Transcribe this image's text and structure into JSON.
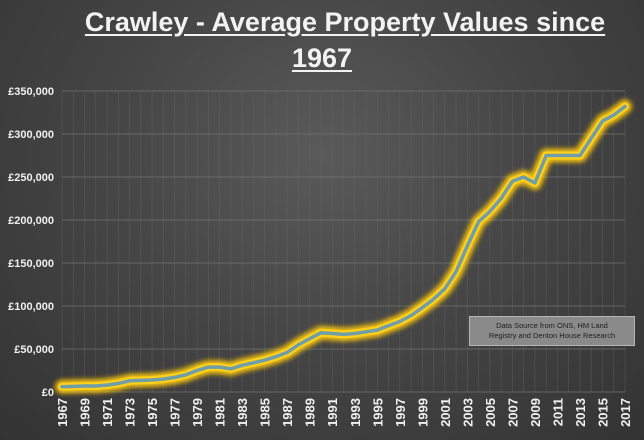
{
  "chart_data": {
    "type": "line",
    "title": "Crawley - Average Property Values since 1967",
    "title_lines": [
      "Crawley - Average Property Values since",
      "1967"
    ],
    "xlabel": "",
    "ylabel": "",
    "ylim": [
      0,
      350000
    ],
    "y_ticks": [
      "£0",
      "£50,000",
      "£100,000",
      "£150,000",
      "£200,000",
      "£250,000",
      "£300,000",
      "£350,000"
    ],
    "x_ticks": [
      "1967",
      "1969",
      "1971",
      "1973",
      "1975",
      "1977",
      "1979",
      "1981",
      "1983",
      "1985",
      "1987",
      "1989",
      "1991",
      "1993",
      "1995",
      "1997",
      "1999",
      "2001",
      "2003",
      "2005",
      "2007",
      "2009",
      "2011",
      "2013",
      "2015",
      "2017"
    ],
    "grid": true,
    "legend": null,
    "x": [
      1967,
      1968,
      1969,
      1970,
      1971,
      1972,
      1973,
      1974,
      1975,
      1976,
      1977,
      1978,
      1979,
      1980,
      1981,
      1982,
      1983,
      1984,
      1985,
      1986,
      1987,
      1988,
      1989,
      1990,
      1991,
      1992,
      1993,
      1994,
      1995,
      1996,
      1997,
      1998,
      1999,
      2000,
      2001,
      2002,
      2003,
      2004,
      2005,
      2006,
      2007,
      2008,
      2009,
      2010,
      2011,
      2012,
      2013,
      2014,
      2015,
      2016,
      2017
    ],
    "series": [
      {
        "name": "Average Property Value",
        "values": [
          6000,
          6500,
          7000,
          7000,
          8000,
          10000,
          13000,
          13500,
          14000,
          15000,
          17000,
          20000,
          25000,
          29000,
          29000,
          27000,
          31000,
          34000,
          37000,
          41000,
          46000,
          55000,
          62000,
          69000,
          68000,
          67000,
          68000,
          70000,
          72000,
          77000,
          82000,
          89000,
          98000,
          108000,
          120000,
          140000,
          170000,
          198000,
          210000,
          225000,
          245000,
          250000,
          243000,
          275000,
          275000,
          275000,
          275000,
          295000,
          315000,
          322000,
          332000
        ]
      }
    ],
    "annotations": [
      "Data Source from ONS, HM Land Registry and Denton House Research"
    ]
  },
  "note": {
    "line1": "Data Source from ONS, HM Land",
    "line2": "Registry and Denton House Research"
  }
}
